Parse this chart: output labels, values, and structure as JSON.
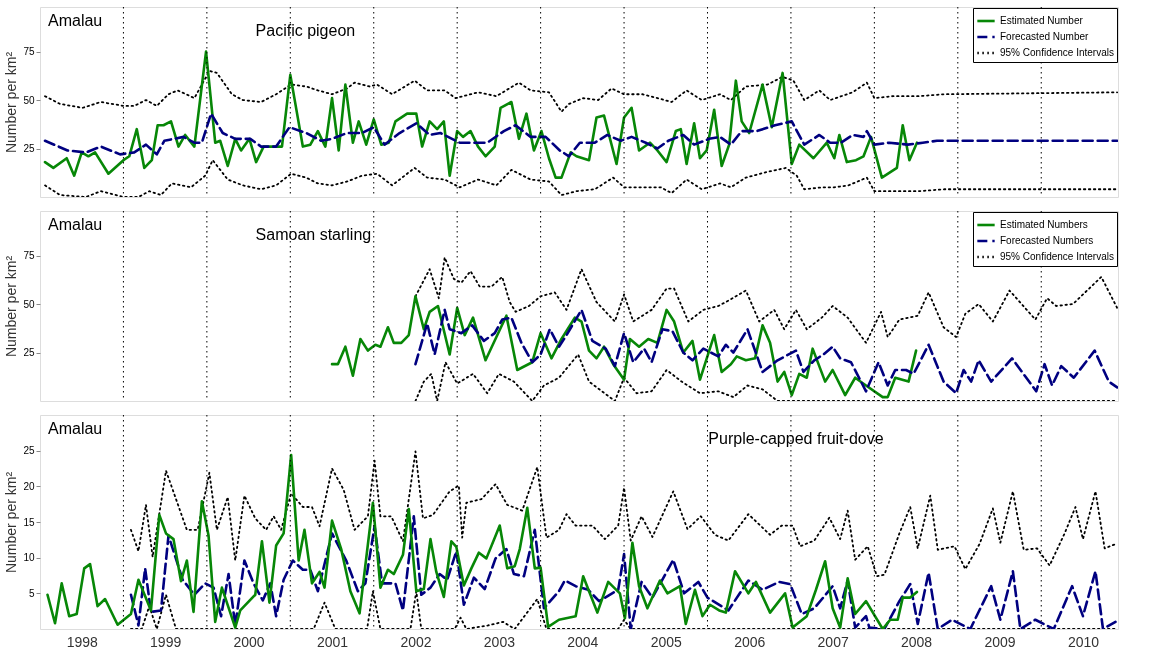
{
  "chart_data": [
    {
      "type": "line",
      "title": "Pacific pigeon",
      "annotations": [
        "Amalau"
      ],
      "ylabel": "Number per km²",
      "xlim": [
        1998,
        2010.92
      ],
      "ylim": [
        0,
        98
      ],
      "yticks": [
        25,
        50,
        75
      ],
      "tick_labels": "y",
      "grid": false,
      "legend": "top right",
      "ref_lines": [
        {
          "axis": "x",
          "value": 1999,
          "line_style": "dotted",
          "color": "#000000"
        },
        {
          "axis": "x",
          "value": 2000,
          "line_style": "dotted",
          "color": "#000000"
        },
        {
          "axis": "x",
          "value": 2001,
          "line_style": "dotted",
          "color": "#000000"
        },
        {
          "axis": "x",
          "value": 2002,
          "line_style": "dotted",
          "color": "#000000"
        },
        {
          "axis": "x",
          "value": 2003,
          "line_style": "dotted",
          "color": "#000000"
        },
        {
          "axis": "x",
          "value": 2004,
          "line_style": "dotted",
          "color": "#000000"
        },
        {
          "axis": "x",
          "value": 2005,
          "line_style": "dotted",
          "color": "#000000"
        },
        {
          "axis": "x",
          "value": 2006,
          "line_style": "dotted",
          "color": "#000000"
        },
        {
          "axis": "x",
          "value": 2007,
          "line_style": "dotted",
          "color": "#000000"
        },
        {
          "axis": "x",
          "value": 2008,
          "line_style": "dotted",
          "color": "#000000"
        },
        {
          "axis": "x",
          "value": 2009,
          "line_style": "dotted",
          "color": "#000000"
        },
        {
          "axis": "x",
          "value": 2010,
          "line_style": "dotted",
          "color": "#000000"
        }
      ],
      "series": [
        {
          "name": "Estimated Number",
          "color": "#078707",
          "line_style": "solid",
          "x": [
            1998.06,
            1998.16,
            1998.32,
            1998.41,
            1998.5,
            1998.58,
            1998.66,
            1998.82,
            1999.0,
            1999.07,
            1999.16,
            1999.25,
            1999.34,
            1999.41,
            1999.48,
            1999.57,
            1999.66,
            1999.74,
            1999.85,
            1999.99,
            2000.1,
            2000.16,
            2000.25,
            2000.34,
            2000.41,
            2000.51,
            2000.59,
            2000.68,
            2000.79,
            2000.9,
            2001.0,
            2001.15,
            2001.24,
            2001.33,
            2001.42,
            2001.5,
            2001.58,
            2001.66,
            2001.75,
            2001.82,
            2001.91,
            2002.0,
            2002.09,
            2002.18,
            2002.26,
            2002.4,
            2002.51,
            2002.58,
            2002.67,
            2002.76,
            2002.84,
            2002.91,
            2003.0,
            2003.07,
            2003.16,
            2003.25,
            2003.34,
            2003.45,
            2003.52,
            2003.65,
            2003.74,
            2003.83,
            2003.92,
            2004.01,
            2004.1,
            2004.18,
            2004.25,
            2004.36,
            2004.43,
            2004.58,
            2004.67,
            2004.76,
            2004.91,
            2005.0,
            2005.09,
            2005.18,
            2005.31,
            2005.4,
            2005.51,
            2005.62,
            2005.68,
            2005.75,
            2005.84,
            2005.91,
            2005.99,
            2006.08,
            2006.17,
            2006.26,
            2006.34,
            2006.41,
            2006.5,
            2006.66,
            2006.77,
            2006.9,
            2007.01,
            2007.1,
            2007.27,
            2007.43,
            2007.52,
            2007.58,
            2007.67,
            2007.78,
            2007.87,
            2007.96,
            2008.09,
            2008.27,
            2008.34,
            2008.42,
            2008.51
          ],
          "values": [
            18,
            15,
            20,
            11,
            23,
            21,
            23,
            12,
            19,
            21,
            35,
            15,
            19,
            37,
            37,
            39,
            26,
            32,
            26,
            75,
            28,
            29,
            16,
            30,
            24,
            30,
            18,
            26,
            26,
            26,
            63,
            26,
            27,
            34,
            26,
            51,
            24,
            58,
            28,
            39,
            27,
            40,
            27,
            28,
            39,
            43,
            43,
            26,
            39,
            35,
            39,
            11,
            34,
            31,
            34,
            26,
            21,
            26,
            46,
            49,
            30,
            43,
            24,
            34,
            20,
            10,
            10,
            23,
            21,
            19,
            41,
            42,
            17,
            41,
            46,
            24,
            28,
            24,
            18,
            34,
            35,
            17,
            38,
            20,
            24,
            45,
            16,
            27,
            60,
            39,
            33,
            58,
            36,
            64,
            17,
            27,
            20,
            28,
            20,
            32,
            18,
            19,
            21,
            31,
            10,
            15,
            37,
            19,
            28
          ]
        },
        {
          "name": "Forecasted Number",
          "color": "#000080",
          "line_style": "dashed",
          "x": [
            1998.06,
            1998.33,
            1998.55,
            1998.73,
            1998.96,
            1999.13,
            1999.27,
            1999.4,
            1999.49,
            1999.72,
            1999.85,
            1999.94,
            2000.05,
            2000.19,
            2000.34,
            2000.52,
            2000.65,
            2000.83,
            2000.99,
            2001.19,
            2001.37,
            2001.5,
            2001.68,
            2001.86,
            2002.0,
            2002.13,
            2002.31,
            2002.51,
            2002.67,
            2002.8,
            2003.03,
            2003.16,
            2003.36,
            2003.56,
            2003.7,
            2003.88,
            2004.06,
            2004.23,
            2004.34,
            2004.47,
            2004.65,
            2004.8,
            2004.96,
            2005.09,
            2005.26,
            2005.4,
            2005.53,
            2005.71,
            2005.84,
            2006.02,
            2006.15,
            2006.28,
            2006.41,
            2006.59,
            2006.81,
            2007.01,
            2007.16,
            2007.34,
            2007.47,
            2007.6,
            2007.74,
            2007.87,
            2007.91,
            2008.0,
            2008.18,
            2008.4,
            2008.58,
            2008.75,
            2010.91
          ],
          "values": [
            29,
            24,
            23,
            26,
            22,
            23,
            27,
            22,
            29,
            31,
            28,
            28,
            43,
            33,
            30,
            30,
            26,
            26,
            36,
            33,
            29,
            30,
            33,
            33,
            36,
            27,
            33,
            38,
            32,
            33,
            28,
            28,
            28,
            34,
            37,
            31,
            31,
            24,
            21,
            28,
            28,
            32,
            29,
            31,
            28,
            25,
            29,
            32,
            27,
            30,
            31,
            27,
            34,
            34,
            37,
            39,
            27,
            32,
            28,
            28,
            32,
            31,
            34,
            27,
            28,
            27,
            28,
            29,
            29
          ]
        },
        {
          "name": "95% Confidence Intervals",
          "color": "#000000",
          "line_style": "dotted",
          "x": [
            1998.06,
            1998.24,
            1998.51,
            1998.73,
            1999.0,
            1999.13,
            1999.27,
            1999.4,
            1999.54,
            1999.65,
            1999.85,
            2000.03,
            2000.12,
            2000.3,
            2000.43,
            2000.65,
            2000.83,
            2001.01,
            2001.19,
            2001.33,
            2001.5,
            2001.68,
            2001.77,
            2001.95,
            2002.04,
            2002.22,
            2002.49,
            2002.64,
            2002.85,
            2002.98,
            2003.25,
            2003.47,
            2003.74,
            2003.88,
            2004.1,
            2004.25,
            2004.34,
            2004.51,
            2004.69,
            2004.85,
            2005.0,
            2005.22,
            2005.4,
            2005.57,
            2005.75,
            2005.93,
            2006.15,
            2006.28,
            2006.46,
            2006.72,
            2006.9,
            2007.03,
            2007.16,
            2007.34,
            2007.47,
            2007.74,
            2007.91,
            2008.0,
            2008.22,
            2008.53,
            2008.84,
            2010.91
          ],
          "values": [
            52,
            48,
            46,
            49,
            47,
            47,
            50,
            47,
            53,
            55,
            51,
            65,
            64,
            53,
            50,
            49,
            53,
            58,
            57,
            55,
            53,
            56,
            59,
            57,
            58,
            53,
            60,
            55,
            55,
            51,
            54,
            52,
            59,
            55,
            54,
            44,
            48,
            51,
            50,
            56,
            53,
            53,
            51,
            49,
            55,
            50,
            53,
            50,
            57,
            58,
            62,
            60,
            50,
            55,
            50,
            54,
            59,
            51,
            52,
            52,
            53,
            54
          ]
        },
        {
          "color": "#000000",
          "line_style": "dotted",
          "x": [
            1998.06,
            1998.24,
            1998.55,
            1998.73,
            1999.0,
            1999.18,
            1999.31,
            1999.45,
            1999.58,
            1999.81,
            1999.98,
            2000.07,
            2000.25,
            2000.43,
            2000.65,
            2000.83,
            2001.01,
            2001.19,
            2001.33,
            2001.5,
            2001.68,
            2001.86,
            2002.04,
            2002.22,
            2002.49,
            2002.64,
            2002.85,
            2003.03,
            2003.25,
            2003.47,
            2003.65,
            2003.88,
            2004.1,
            2004.25,
            2004.43,
            2004.65,
            2004.87,
            2005.0,
            2005.22,
            2005.44,
            2005.57,
            2005.75,
            2005.93,
            2006.15,
            2006.28,
            2006.46,
            2006.72,
            2006.94,
            2007.07,
            2007.16,
            2007.38,
            2007.52,
            2007.69,
            2007.91,
            2008.0,
            2008.22,
            2008.53,
            2008.84,
            2010.91
          ],
          "values": [
            6,
            1,
            0,
            3,
            0,
            0,
            3,
            1,
            7,
            5,
            11,
            19,
            9,
            6,
            4,
            6,
            12,
            10,
            7,
            6,
            8,
            11,
            12,
            6,
            15,
            10,
            9,
            5,
            9,
            6,
            14,
            9,
            8,
            1,
            3,
            4,
            10,
            5,
            5,
            5,
            2,
            9,
            4,
            7,
            5,
            10,
            13,
            15,
            11,
            4,
            5,
            5,
            6,
            10,
            3,
            3,
            3,
            4,
            4
          ]
        }
      ]
    },
    {
      "type": "line",
      "title": "Samoan starling",
      "annotations": [
        "Amalau"
      ],
      "ylabel": "Number per km²",
      "xlim": [
        1998,
        2010.92
      ],
      "ylim": [
        0,
        98
      ],
      "yticks": [
        25,
        50,
        75
      ],
      "tick_labels": "y",
      "grid": false,
      "legend": "top right",
      "ref_lines": [
        {
          "axis": "x",
          "value": 1999,
          "line_style": "dotted",
          "color": "#000000"
        },
        {
          "axis": "x",
          "value": 2000,
          "line_style": "dotted",
          "color": "#000000"
        },
        {
          "axis": "x",
          "value": 2001,
          "line_style": "dotted",
          "color": "#000000"
        },
        {
          "axis": "x",
          "value": 2002,
          "line_style": "dotted",
          "color": "#000000"
        },
        {
          "axis": "x",
          "value": 2003,
          "line_style": "dotted",
          "color": "#000000"
        },
        {
          "axis": "x",
          "value": 2004,
          "line_style": "dotted",
          "color": "#000000"
        },
        {
          "axis": "x",
          "value": 2005,
          "line_style": "dotted",
          "color": "#000000"
        },
        {
          "axis": "x",
          "value": 2006,
          "line_style": "dotted",
          "color": "#000000"
        },
        {
          "axis": "x",
          "value": 2007,
          "line_style": "dotted",
          "color": "#000000"
        },
        {
          "axis": "x",
          "value": 2008,
          "line_style": "dotted",
          "color": "#000000"
        },
        {
          "axis": "x",
          "value": 2009,
          "line_style": "dotted",
          "color": "#000000"
        },
        {
          "axis": "x",
          "value": 2010,
          "line_style": "dotted",
          "color": "#000000"
        }
      ],
      "series": [
        {
          "name": "Estimated Numbers",
          "color": "#078707",
          "line_style": "solid",
          "x": [
            2001.5,
            2001.57,
            2001.66,
            2001.75,
            2001.84,
            2001.93,
            2002.02,
            2002.08,
            2002.17,
            2002.24,
            2002.33,
            2002.42,
            2002.5,
            2002.6,
            2002.67,
            2002.77,
            2002.91,
            2003.0,
            2003.09,
            2003.19,
            2003.34,
            2003.47,
            2003.59,
            2003.72,
            2003.9,
            2004.0,
            2004.13,
            2004.25,
            2004.41,
            2004.49,
            2004.58,
            2004.67,
            2004.76,
            2004.87,
            2005.0,
            2005.07,
            2005.18,
            2005.29,
            2005.4,
            2005.51,
            2005.6,
            2005.71,
            2005.82,
            2005.91,
            2006.08,
            2006.17,
            2006.28,
            2006.35,
            2006.46,
            2006.57,
            2006.66,
            2006.75,
            2006.84,
            2006.92,
            2007.01,
            2007.1,
            2007.19,
            2007.26,
            2007.41,
            2007.5,
            2007.65,
            2007.77,
            2007.9,
            2008.1,
            2008.16,
            2008.25,
            2008.41,
            2008.5
          ],
          "values": [
            19,
            19,
            28,
            13,
            32,
            26,
            29,
            28,
            38,
            30,
            30,
            34,
            54,
            37,
            46,
            49,
            24,
            48,
            34,
            43,
            21,
            33,
            44,
            16,
            20,
            35,
            22,
            32,
            43,
            41,
            26,
            22,
            28,
            19,
            11,
            32,
            28,
            32,
            30,
            47,
            41,
            25,
            31,
            11,
            34,
            15,
            19,
            23,
            21,
            22,
            39,
            30,
            10,
            15,
            3,
            14,
            12,
            27,
            10,
            16,
            3,
            12,
            8,
            2,
            2,
            12,
            10,
            26
          ]
        },
        {
          "name": "Forecasted Numbers",
          "color": "#000080",
          "line_style": "dashed",
          "x": [
            2002.5,
            2002.64,
            2002.73,
            2002.85,
            2002.91,
            2003.05,
            2003.18,
            2003.32,
            2003.45,
            2003.54,
            2003.65,
            2003.77,
            2003.9,
            2004.0,
            2004.11,
            2004.22,
            2004.31,
            2004.49,
            2004.62,
            2004.78,
            2004.89,
            2005.0,
            2005.11,
            2005.24,
            2005.33,
            2005.46,
            2005.58,
            2005.71,
            2005.82,
            2005.95,
            2006.13,
            2006.22,
            2006.31,
            2006.48,
            2006.66,
            2006.84,
            2007.06,
            2007.15,
            2007.28,
            2007.39,
            2007.5,
            2007.59,
            2007.72,
            2007.9,
            2008.05,
            2008.16,
            2008.25,
            2008.38,
            2008.47,
            2008.65,
            2008.83,
            2008.98,
            2009.07,
            2009.16,
            2009.25,
            2009.4,
            2009.65,
            2009.94,
            2010.04,
            2010.13,
            2010.24,
            2010.39,
            2010.64,
            2010.81,
            2010.91
          ],
          "values": [
            19,
            40,
            24,
            47,
            37,
            35,
            39,
            31,
            35,
            42,
            43,
            30,
            20,
            24,
            37,
            28,
            34,
            47,
            31,
            27,
            18,
            35,
            20,
            27,
            20,
            37,
            36,
            25,
            21,
            27,
            23,
            29,
            25,
            37,
            15,
            21,
            26,
            15,
            21,
            24,
            28,
            22,
            20,
            5,
            20,
            8,
            16,
            16,
            14,
            29,
            10,
            4,
            16,
            10,
            21,
            10,
            22,
            5,
            19,
            8,
            18,
            12,
            26,
            10,
            7
          ]
        },
        {
          "name": "95% Confidence Intervals",
          "color": "#000000",
          "line_style": "dotted",
          "x": [
            2002.5,
            2002.67,
            2002.78,
            2002.85,
            2002.96,
            2003.05,
            2003.16,
            2003.27,
            2003.41,
            2003.54,
            2003.63,
            2003.7,
            2003.86,
            2004.0,
            2004.17,
            2004.31,
            2004.49,
            2004.67,
            2004.89,
            2005.0,
            2005.11,
            2005.33,
            2005.51,
            2005.6,
            2005.77,
            2005.95,
            2006.13,
            2006.26,
            2006.46,
            2006.62,
            2006.8,
            2006.92,
            2007.06,
            2007.19,
            2007.37,
            2007.5,
            2007.68,
            2007.9,
            2008.08,
            2008.16,
            2008.3,
            2008.52,
            2008.65,
            2008.83,
            2008.98,
            2009.09,
            2009.25,
            2009.42,
            2009.62,
            2009.93,
            2010.07,
            2010.18,
            2010.38,
            2010.72,
            2010.91
          ],
          "values": [
            54,
            68,
            53,
            74,
            63,
            61,
            67,
            59,
            59,
            64,
            51,
            46,
            49,
            54,
            56,
            47,
            68,
            51,
            41,
            55,
            41,
            47,
            58,
            58,
            41,
            47,
            49,
            52,
            57,
            41,
            47,
            37,
            47,
            37,
            43,
            49,
            43,
            30,
            46,
            33,
            42,
            44,
            56,
            38,
            33,
            45,
            50,
            41,
            57,
            42,
            53,
            49,
            50,
            64,
            48
          ]
        },
        {
          "color": "#000000",
          "line_style": "dotted",
          "x": [
            2002.5,
            2002.6,
            2002.69,
            2002.76,
            2002.86,
            2003.0,
            2003.19,
            2003.36,
            2003.5,
            2003.68,
            2003.9,
            2004.04,
            2004.22,
            2004.45,
            2004.58,
            2004.89,
            2005.0,
            2005.15,
            2005.33,
            2005.51,
            2005.69,
            2005.91,
            2006.13,
            2006.31,
            2006.48,
            2006.66,
            2006.84,
            2007.1,
            2007.54,
            2010.91
          ],
          "values": [
            0,
            10,
            14,
            0,
            20,
            9,
            14,
            4,
            14,
            10,
            0,
            8,
            12,
            24,
            10,
            0,
            12,
            4,
            5,
            16,
            10,
            4,
            5,
            2,
            8,
            6,
            0,
            0,
            0,
            0
          ]
        }
      ]
    },
    {
      "type": "line",
      "title": "Purple-capped fruit-dove",
      "annotations": [
        "Amalau"
      ],
      "ylabel": "Number per km²",
      "xlim": [
        1998,
        2010.92
      ],
      "ylim": [
        0,
        30
      ],
      "yticks": [
        5,
        10,
        15,
        20,
        25
      ],
      "xticks": [
        {
          "value": 1998.5,
          "label": "1998"
        },
        {
          "value": 1999.5,
          "label": "1999"
        },
        {
          "value": 2000.5,
          "label": "2000"
        },
        {
          "value": 2001.5,
          "label": "2001"
        },
        {
          "value": 2002.5,
          "label": "2002"
        },
        {
          "value": 2003.5,
          "label": "2003"
        },
        {
          "value": 2004.5,
          "label": "2004"
        },
        {
          "value": 2005.5,
          "label": "2005"
        },
        {
          "value": 2006.5,
          "label": "2006"
        },
        {
          "value": 2007.5,
          "label": "2007"
        },
        {
          "value": 2008.5,
          "label": "2008"
        },
        {
          "value": 2009.5,
          "label": "2009"
        },
        {
          "value": 2010.5,
          "label": "2010"
        }
      ],
      "grid": false,
      "legend": false,
      "ref_lines": [
        {
          "axis": "x",
          "value": 1999,
          "line_style": "dotted",
          "color": "#000000"
        },
        {
          "axis": "x",
          "value": 2000,
          "line_style": "dotted",
          "color": "#000000"
        },
        {
          "axis": "x",
          "value": 2001,
          "line_style": "dotted",
          "color": "#000000"
        },
        {
          "axis": "x",
          "value": 2002,
          "line_style": "dotted",
          "color": "#000000"
        },
        {
          "axis": "x",
          "value": 2003,
          "line_style": "dotted",
          "color": "#000000"
        },
        {
          "axis": "x",
          "value": 2004,
          "line_style": "dotted",
          "color": "#000000"
        },
        {
          "axis": "x",
          "value": 2005,
          "line_style": "dotted",
          "color": "#000000"
        },
        {
          "axis": "x",
          "value": 2006,
          "line_style": "dotted",
          "color": "#000000"
        },
        {
          "axis": "x",
          "value": 2007,
          "line_style": "dotted",
          "color": "#000000"
        },
        {
          "axis": "x",
          "value": 2008,
          "line_style": "dotted",
          "color": "#000000"
        },
        {
          "axis": "x",
          "value": 2009,
          "line_style": "dotted",
          "color": "#000000"
        },
        {
          "axis": "x",
          "value": 2010,
          "line_style": "dotted",
          "color": "#000000"
        }
      ],
      "series": [
        {
          "color": "#000000",
          "line_style": "dotted",
          "x": [
            1999.09,
            1999.18,
            1999.27,
            1999.35,
            1999.51,
            1999.76,
            1999.89,
            2000.03,
            2000.12,
            2000.25,
            2000.34,
            2000.45,
            2000.58,
            2000.71,
            2000.8,
            2000.89,
            2001.01,
            2001.15,
            2001.26,
            2001.35,
            2001.5,
            2001.64,
            2001.77,
            2001.93,
            2002.01,
            2002.08,
            2002.21,
            2002.35,
            2002.5,
            2002.59,
            2002.71,
            2002.91,
            2003.02,
            2003.06,
            2003.11,
            2003.29,
            2003.46,
            2003.6,
            2003.78,
            2003.96,
            2004.07,
            2004.22,
            2004.31,
            2004.42,
            2004.62,
            2004.77,
            2004.93,
            2005.0,
            2005.08,
            2005.21,
            2005.34,
            2005.59,
            2005.76,
            2005.92,
            2006.09,
            2006.25,
            2006.49,
            2006.75,
            2006.89,
            2007.02,
            2007.11,
            2007.28,
            2007.46,
            2007.59,
            2007.68,
            2007.77,
            2007.92,
            2008.03,
            2008.12,
            2008.3,
            2008.43,
            2008.52,
            2008.67,
            2008.76,
            2008.96,
            2009.09,
            2009.26,
            2009.42,
            2009.51,
            2009.66,
            2009.79,
            2009.95,
            2010.1,
            2010.28,
            2010.41,
            2010.5,
            2010.65,
            2010.76,
            2010.89
          ],
          "values": [
            13.9,
            10.9,
            17.4,
            10.1,
            22.2,
            13.9,
            13.9,
            21.9,
            13.9,
            18.5,
            9.6,
            18.7,
            15.5,
            13.9,
            15.8,
            13.9,
            19.0,
            17.1,
            17.1,
            14.4,
            22.5,
            19.5,
            13.9,
            15.8,
            23.6,
            15.8,
            15.8,
            12.3,
            24.9,
            15.5,
            16.0,
            19.3,
            20.1,
            12.8,
            17.7,
            18.2,
            20.3,
            17.4,
            16.6,
            22.7,
            12.8,
            13.9,
            16.1,
            14.5,
            14.5,
            12.6,
            14.5,
            19.8,
            12.4,
            15.8,
            12.9,
            19.3,
            14.0,
            15.8,
            13.2,
            12.4,
            16.1,
            13.2,
            14.5,
            14.5,
            11.6,
            12.4,
            15.6,
            12.6,
            16.6,
            9.7,
            11.6,
            7.4,
            7.6,
            13.4,
            17.1,
            11.3,
            18.7,
            11.1,
            11.6,
            8.4,
            11.9,
            16.9,
            12.1,
            19.3,
            11.1,
            11.3,
            8.9,
            13.4,
            17.1,
            12.6,
            19.3,
            11.3,
            11.9
          ]
        },
        {
          "color": "#000080",
          "line_style": "dashed",
          "x": [
            1999.09,
            1999.18,
            1999.26,
            1999.33,
            1999.45,
            1999.54,
            1999.71,
            1999.85,
            1999.98,
            2000.08,
            2000.17,
            2000.26,
            2000.34,
            2000.45,
            2000.56,
            2000.67,
            2000.76,
            2000.83,
            2000.92,
            2001.03,
            2001.15,
            2001.24,
            2001.33,
            2001.5,
            2001.67,
            2001.81,
            2001.9,
            2002.01,
            2002.1,
            2002.26,
            2002.35,
            2002.48,
            2002.57,
            2002.68,
            2002.79,
            2002.88,
            2002.99,
            2003.08,
            2003.2,
            2003.33,
            2003.46,
            2003.59,
            2003.68,
            2003.8,
            2003.93,
            2004.04,
            2004.22,
            2004.29,
            2004.42,
            2004.57,
            2004.7,
            2004.93,
            2005.0,
            2005.08,
            2005.21,
            2005.34,
            2005.59,
            2005.72,
            2005.89,
            2006.0,
            2006.25,
            2006.49,
            2006.66,
            2006.86,
            2006.99,
            2007.13,
            2007.28,
            2007.5,
            2007.59,
            2007.68,
            2007.77,
            2007.9,
            2007.94,
            2008.12,
            2008.3,
            2008.43,
            2008.52,
            2008.65,
            2008.76,
            2008.93,
            2009.15,
            2009.4,
            2009.51,
            2009.66,
            2009.75,
            2009.93,
            2010.15,
            2010.37,
            2010.5,
            2010.65,
            2010.74,
            2010.89
          ],
          "values": [
            4.8,
            0.5,
            8.5,
            2.4,
            2.6,
            13.1,
            6.9,
            4.8,
            6.4,
            5.8,
            1.8,
            7.7,
            0.5,
            9.6,
            6.4,
            4.0,
            6.4,
            1.8,
            6.9,
            9.6,
            8.3,
            8.3,
            5.3,
            13.4,
            9.6,
            5.3,
            6.4,
            14.4,
            6.4,
            6.4,
            2.6,
            15.8,
            4.8,
            5.8,
            7.7,
            6.9,
            10.9,
            3.4,
            7.2,
            5.6,
            9.9,
            11.2,
            7.7,
            7.4,
            13.9,
            2.9,
            5.3,
            6.8,
            6.0,
            5.5,
            3.9,
            5.5,
            10.5,
            0,
            6.6,
            4.4,
            9.7,
            5.0,
            6.6,
            4.4,
            2.6,
            6.8,
            5.5,
            6.6,
            6.3,
            2.1,
            2.9,
            6.0,
            2.9,
            6.8,
            0.2,
            1.8,
            0.2,
            0,
            3.9,
            6.3,
            0.7,
            7.9,
            0,
            1.3,
            0,
            6.0,
            1.3,
            8.1,
            0,
            1.3,
            0,
            6.0,
            1.8,
            8.1,
            0,
            1.0
          ]
        },
        {
          "color": "#078707",
          "line_style": "solid",
          "x": [
            1998.09,
            1998.18,
            1998.26,
            1998.35,
            1998.44,
            1998.53,
            1998.6,
            1998.69,
            1998.78,
            1998.93,
            1999.09,
            1999.18,
            1999.33,
            1999.43,
            1999.51,
            1999.6,
            1999.69,
            1999.76,
            1999.84,
            1999.94,
            2000.02,
            2000.1,
            2000.18,
            2000.34,
            2000.4,
            2000.58,
            2000.66,
            2000.75,
            2000.83,
            2000.92,
            2001.01,
            2001.1,
            2001.17,
            2001.26,
            2001.35,
            2001.41,
            2001.5,
            2001.61,
            2001.72,
            2001.83,
            2001.99,
            2002.08,
            2002.17,
            2002.24,
            2002.35,
            2002.42,
            2002.51,
            2002.6,
            2002.68,
            2002.75,
            2002.84,
            2002.93,
            2002.99,
            2003.08,
            2003.17,
            2003.26,
            2003.35,
            2003.51,
            2003.6,
            2003.69,
            2003.75,
            2003.84,
            2003.93,
            2004.0,
            2004.09,
            2004.22,
            2004.42,
            2004.51,
            2004.68,
            2004.81,
            2004.95,
            2005.01,
            2005.1,
            2005.18,
            2005.28,
            2005.43,
            2005.52,
            2005.67,
            2005.74,
            2005.85,
            2005.94,
            2006.03,
            2006.14,
            2006.22,
            2006.33,
            2006.49,
            2006.58,
            2006.75,
            2006.93,
            2007.02,
            2007.19,
            2007.3,
            2007.41,
            2007.5,
            2007.59,
            2007.68,
            2007.77,
            2007.9,
            2008.1,
            2008.19,
            2008.28,
            2008.34,
            2008.43,
            2008.51
          ],
          "values": [
            4.8,
            0.8,
            6.4,
            1.8,
            2.1,
            8.5,
            9.1,
            3.2,
            4.2,
            0.6,
            2.1,
            6.9,
            2.6,
            16.0,
            13.4,
            12.6,
            6.7,
            9.6,
            2.4,
            17.9,
            13.1,
            1.0,
            5.8,
            0.2,
            2.6,
            4.8,
            12.3,
            3.7,
            11.7,
            13.4,
            24.4,
            9.6,
            13.9,
            6.4,
            8.0,
            5.8,
            15.2,
            11.2,
            5.3,
            2.2,
            17.7,
            5.8,
            8.3,
            7.7,
            10.4,
            16.8,
            5.3,
            5.6,
            12.6,
            8.0,
            4.5,
            12.3,
            11.5,
            6.1,
            8.5,
            10.7,
            9.9,
            14.5,
            8.5,
            8.8,
            11.2,
            17.0,
            8.5,
            8.6,
            0.3,
            1.3,
            1.8,
            7.4,
            2.3,
            6.6,
            5.0,
            1.5,
            12.1,
            6.0,
            2.9,
            6.8,
            5.0,
            6.0,
            0.7,
            5.5,
            1.8,
            3.4,
            2.6,
            2.3,
            8.1,
            5.0,
            6.6,
            2.3,
            5.0,
            0.2,
            1.8,
            5.5,
            9.5,
            2.9,
            0.2,
            7.1,
            2.1,
            3.9,
            0,
            1.3,
            1.3,
            4.4,
            4.4,
            5.2
          ]
        },
        {
          "color": "#000000",
          "line_style": "dotted",
          "x": [
            1999.09,
            1999.22,
            1999.31,
            1999.4,
            1999.51,
            1999.63,
            2001.28,
            2001.41,
            2001.54,
            2001.92,
            2001.99,
            2002.08,
            2002.44,
            2002.51,
            2002.57,
            2002.97,
            2003.04,
            2003.11,
            2003.37,
            2003.55,
            2003.69,
            2003.96,
            2004.07,
            2004.93,
            2005.0,
            2005.08,
            2010.89
          ],
          "values": [
            0,
            0,
            3.2,
            0,
            4.8,
            0,
            0,
            3.7,
            0,
            0,
            5.3,
            0,
            0,
            5.3,
            0,
            0,
            1.6,
            0,
            0.5,
            1.0,
            0,
            4.2,
            0,
            0,
            1.3,
            0,
            0
          ]
        }
      ]
    }
  ]
}
